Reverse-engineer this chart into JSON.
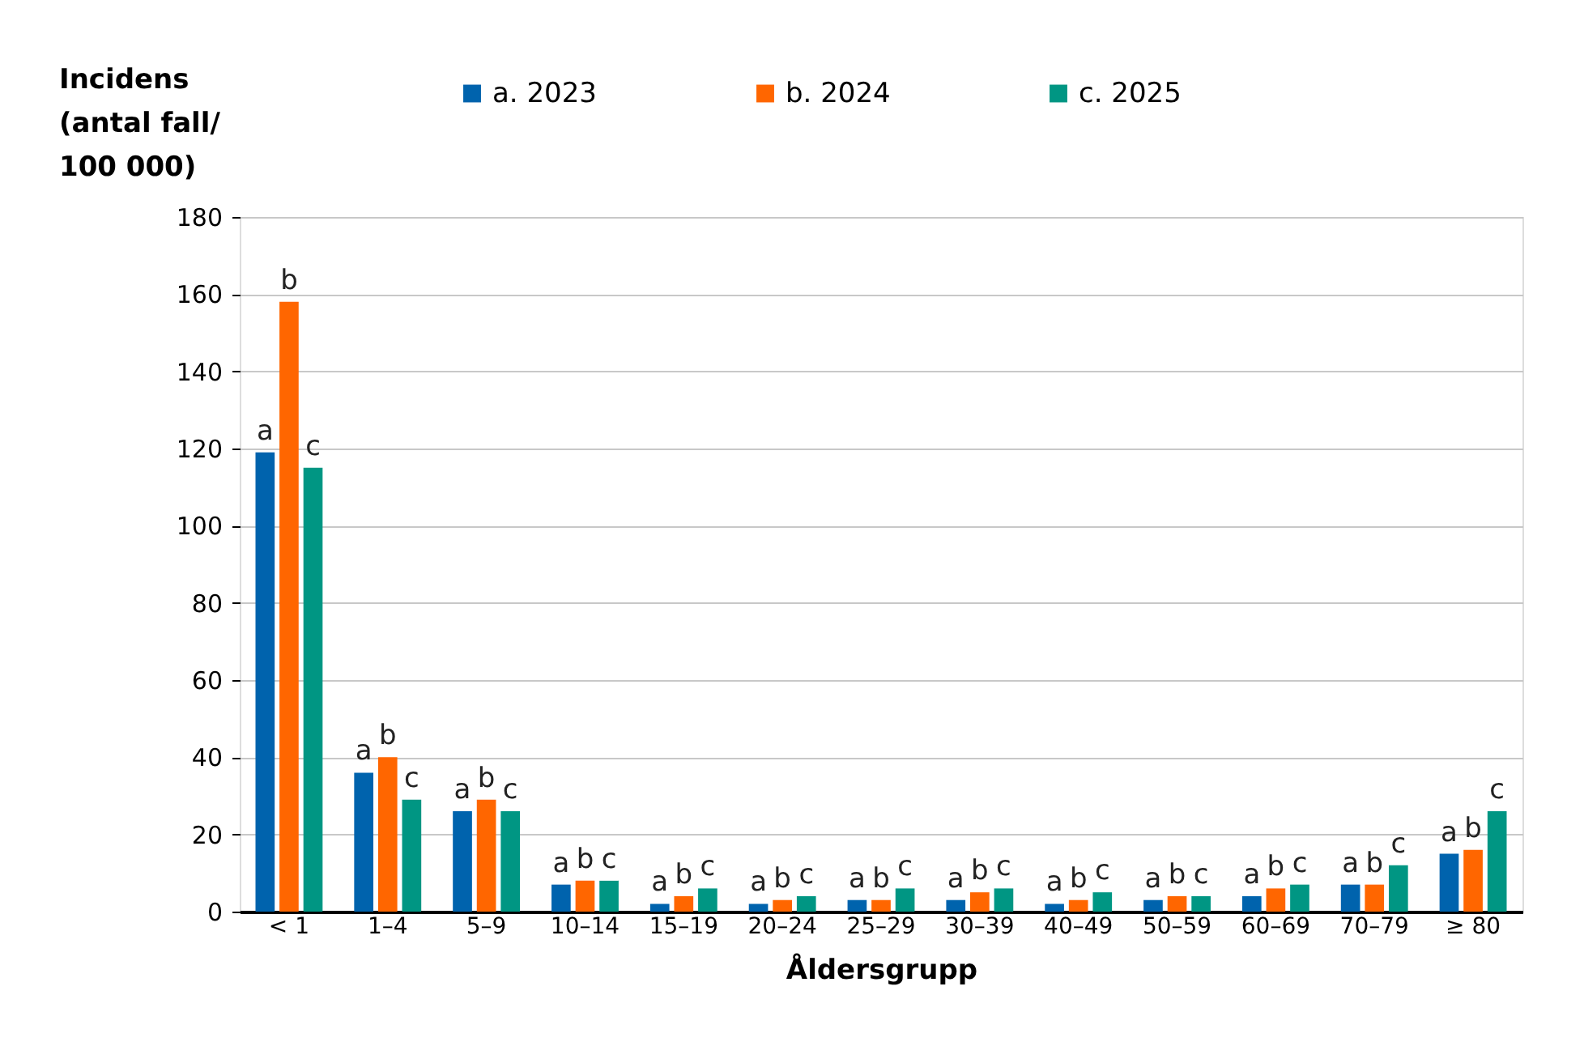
{
  "chart_data": {
    "type": "bar",
    "xlabel": "Åldersgrupp",
    "ylabel": "Incidens\n(antal fall/\n100 000)",
    "categories": [
      "< 1",
      "1–4",
      "5–9",
      "10–14",
      "15–19",
      "20–24",
      "25–29",
      "30–39",
      "40–49",
      "50–59",
      "60–69",
      "70–79",
      "≥ 80"
    ],
    "series": [
      {
        "name": "a. 2023",
        "color": "#0063ad",
        "values": [
          119,
          36,
          26,
          7,
          2,
          2,
          3,
          3,
          2,
          3,
          4,
          7,
          15
        ],
        "value_labels": [
          "a",
          "a",
          "a",
          "a",
          "a",
          "a",
          "a",
          "a",
          "a",
          "a",
          "a",
          "a",
          "a"
        ]
      },
      {
        "name": "b. 2024",
        "color": "#ff6600",
        "values": [
          158,
          40,
          29,
          8,
          4,
          3,
          3,
          5,
          3,
          4,
          6,
          7,
          16
        ],
        "value_labels": [
          "b",
          "b",
          "b",
          "b",
          "b",
          "b",
          "b",
          "b",
          "b",
          "b",
          "b",
          "b",
          "b"
        ]
      },
      {
        "name": "c. 2025",
        "color": "#009683",
        "values": [
          115,
          29,
          26,
          8,
          6,
          4,
          6,
          6,
          5,
          4,
          7,
          12,
          26
        ],
        "value_labels": [
          "c",
          "c",
          "c",
          "c",
          "c",
          "c",
          "c",
          "c",
          "c",
          "c",
          "c",
          "c",
          "c"
        ]
      }
    ],
    "ylim": [
      0,
      180
    ],
    "yticks": [
      0,
      20,
      40,
      60,
      80,
      100,
      120,
      140,
      160,
      180
    ],
    "grid": "y",
    "legend": "top"
  }
}
